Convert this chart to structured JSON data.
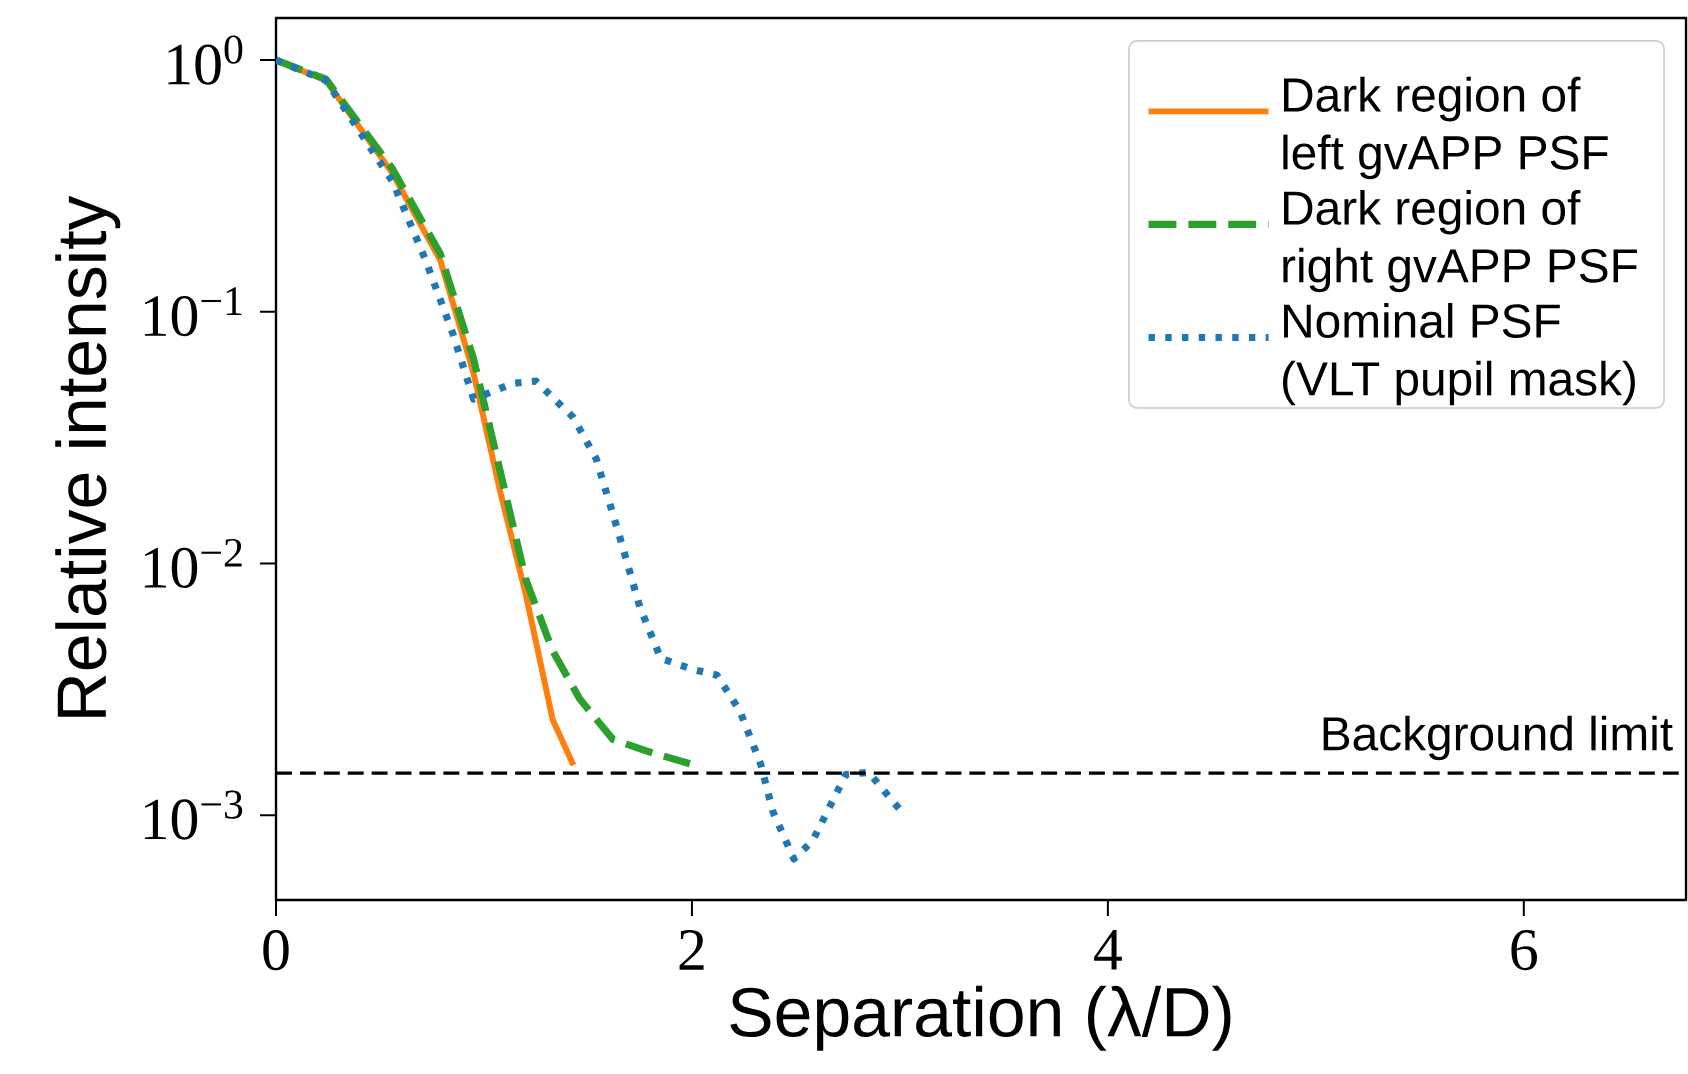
{
  "chart_data": {
    "type": "line",
    "xlabel": "Separation (λ/D)",
    "ylabel": "Relative intensity",
    "log": "y",
    "legend": "top right",
    "xlim": [
      0,
      6.78
    ],
    "ylim": [
      0.00046,
      1.47
    ],
    "xticks": [
      0,
      2,
      4,
      6
    ],
    "yticks": [
      {
        "value": 0.001,
        "label": "10$^{−3}$"
      },
      {
        "value": 0.01,
        "label": "10$^{−2}$"
      },
      {
        "value": 0.1,
        "label": "10$^{−1}$"
      },
      {
        "value": 1,
        "label": "10$^{0}$"
      }
    ],
    "series": [
      {
        "name": "Dark region of left gvAPP PSF",
        "color": "#ff7f0e",
        "line_style": "solid",
        "x": [
          0,
          0.24,
          0.56,
          0.79,
          0.95,
          1.08,
          1.2,
          1.33,
          1.43
        ],
        "values": [
          1.0,
          0.83,
          0.355,
          0.16,
          0.057,
          0.019,
          0.0076,
          0.0024,
          0.00158
        ]
      },
      {
        "name": "Dark region of right gvAPP PSF",
        "color": "#2ca02c",
        "line_style": "dashed",
        "x": [
          0,
          0.24,
          0.56,
          0.79,
          0.95,
          1.2,
          1.33,
          1.46,
          1.62,
          1.78,
          1.99
        ],
        "values": [
          1.0,
          0.84,
          0.37,
          0.17,
          0.065,
          0.0087,
          0.0045,
          0.0029,
          0.002,
          0.0018,
          0.0016
        ]
      },
      {
        "name": "Nominal PSF (VLT pupil mask)",
        "color": "#1f77b4",
        "line_style": "dotted",
        "x": [
          0,
          0.24,
          0.56,
          0.72,
          0.85,
          0.95,
          1.14,
          1.25,
          1.43,
          1.54,
          1.65,
          1.75,
          1.85,
          2.0,
          2.12,
          2.23,
          2.33,
          2.39,
          2.49,
          2.58,
          2.74,
          2.85,
          3.0
        ],
        "values": [
          1.0,
          0.83,
          0.33,
          0.16,
          0.082,
          0.045,
          0.052,
          0.053,
          0.038,
          0.026,
          0.013,
          0.0067,
          0.0042,
          0.0038,
          0.0036,
          0.0026,
          0.0016,
          0.00103,
          0.00067,
          0.00079,
          0.00145,
          0.00148,
          0.00105
        ]
      }
    ],
    "ref_lines": [
      {
        "axis": "y",
        "value": 0.00147,
        "label": "Background limit",
        "color": "#000000",
        "line_style": "dashed"
      }
    ]
  }
}
